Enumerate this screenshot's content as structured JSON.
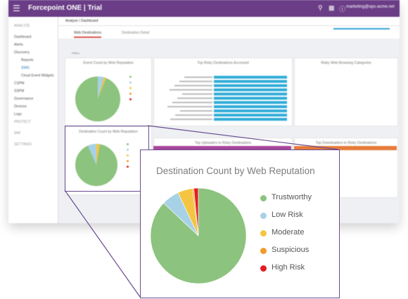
{
  "app": {
    "title": "Forcepoint ONE | Trial",
    "user": "marketing@ops-acme.net"
  },
  "sidebar": {
    "items": [
      {
        "label": "ANALYZE",
        "type": "section"
      },
      {
        "label": "Dashboard",
        "type": "item"
      },
      {
        "label": "Alerts",
        "type": "item"
      },
      {
        "label": "Discovery",
        "type": "item"
      },
      {
        "label": "Reports",
        "type": "sub"
      },
      {
        "label": "SWG",
        "type": "sub",
        "active": true
      },
      {
        "label": "Cloud Event Widgets",
        "type": "sub"
      },
      {
        "label": "CSPM",
        "type": "item"
      },
      {
        "label": "SSPM",
        "type": "item"
      },
      {
        "label": "Governance",
        "type": "item"
      },
      {
        "label": "Devices",
        "type": "item"
      },
      {
        "label": "Logs",
        "type": "item"
      },
      {
        "label": "PROTECT",
        "type": "section"
      },
      {
        "label": "IAM",
        "type": "section"
      },
      {
        "label": "SETTINGS",
        "type": "section"
      }
    ]
  },
  "breadcrumb": "Analyze / Dashboard",
  "tabs": [
    "Web Destinations",
    "Destination Detail"
  ],
  "filters": "Filters",
  "panels": {
    "event_count": "Event Count by Web Reputation",
    "top_risky": "Top Risky Destinations Accessed",
    "risky_categories": "Risky Web Browsing Categories",
    "dest_count_small": "Destination Count by Web Reputation",
    "top_uploaders": "Top Uploaders to Risky Destinations",
    "top_downloaders": "Top Downloaders to Risky Destinations"
  },
  "callout": {
    "title": "Destination Count by Web Reputation",
    "legend": [
      {
        "label": "Trustworthy",
        "color": "#8cc37e"
      },
      {
        "label": "Low Risk",
        "color": "#a7d2e6"
      },
      {
        "label": "Moderate",
        "color": "#f4c542"
      },
      {
        "label": "Suspicious",
        "color": "#f29b2a"
      },
      {
        "label": "High Risk",
        "color": "#e51c23"
      }
    ]
  },
  "chart_data": {
    "type": "pie",
    "title": "Destination Count by Web Reputation",
    "categories": [
      "Trustworthy",
      "Low Risk",
      "Moderate",
      "Suspicious",
      "High Risk"
    ],
    "values": [
      87.0,
      6.0,
      5.0,
      0.5,
      1.5
    ],
    "colors": [
      "#8cc37e",
      "#a7d2e6",
      "#f4c542",
      "#f29b2a",
      "#e51c23"
    ],
    "legend": "right"
  }
}
